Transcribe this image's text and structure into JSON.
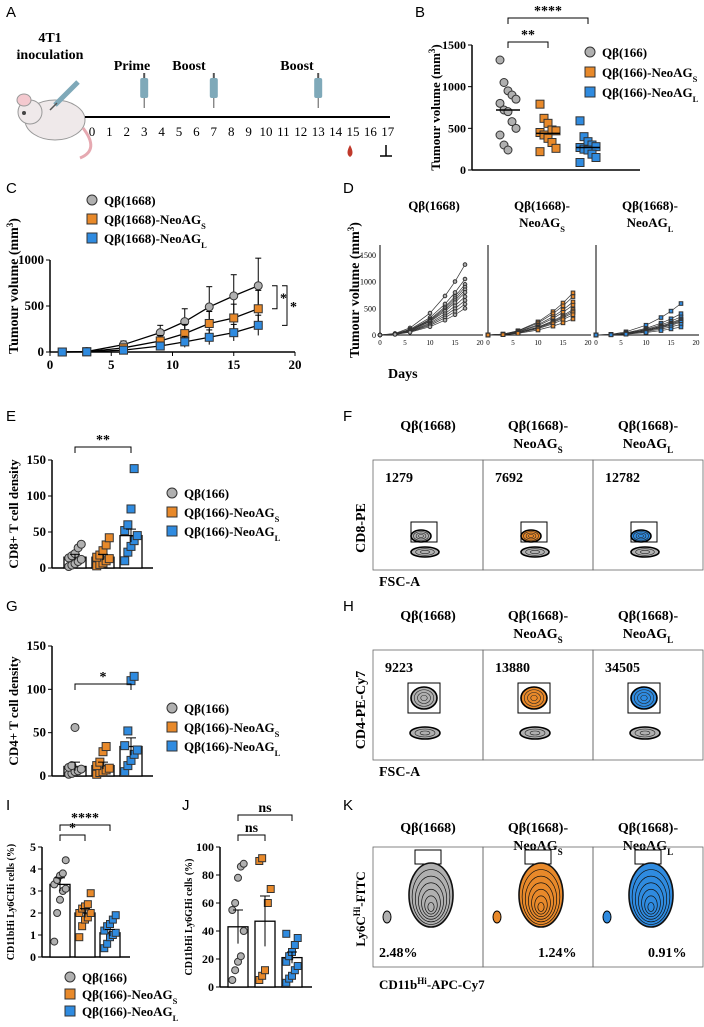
{
  "panels": {
    "A": "A",
    "B": "B",
    "C": "C",
    "D": "D",
    "E": "E",
    "F": "F",
    "G": "G",
    "H": "H",
    "I": "I",
    "J": "J",
    "K": "K"
  },
  "timeline": {
    "inoculation": "4T1\ninoculation",
    "prime": "Prime",
    "boost1": "Boost",
    "boost2": "Boost",
    "days": [
      "0",
      "1",
      "2",
      "3",
      "4",
      "5",
      "6",
      "7",
      "8",
      "9",
      "10",
      "11",
      "12",
      "13",
      "14",
      "15",
      "16",
      "17"
    ],
    "colors": {
      "syringe": "#7fa9b9",
      "blood": "#c0392b"
    }
  },
  "groups166": [
    "Qβ(166)",
    "Qβ(166)-NeoAG",
    "Qβ(166)-NeoAG"
  ],
  "subs": {
    "S": "S",
    "L": "L"
  },
  "groups1668": [
    "Qβ(1668)",
    "Qβ(1668)-NeoAG",
    "Qβ(1668)-NeoAG"
  ],
  "colors": {
    "grey": "#b0b0b0",
    "orange": "#e8892a",
    "blue": "#2f8be0"
  },
  "sig": {
    "B1": "**",
    "B2": "****",
    "C1": "*",
    "C2": "*",
    "E": "**",
    "G": "*",
    "I1": "*",
    "I2": "****",
    "J1": "ns",
    "J2": "ns"
  },
  "flowF": {
    "counts": [
      "1279",
      "7692",
      "12782"
    ],
    "ylabel": "CD8-PE",
    "xlabel": "FSC-A"
  },
  "flowH": {
    "counts": [
      "9223",
      "13880",
      "34505"
    ],
    "ylabel": "CD4-PE-Cy7",
    "xlabel": "FSC-A"
  },
  "flowK": {
    "pcts": [
      "2.48%",
      "1.24%",
      "0.91%"
    ],
    "ylabel": "Ly6C",
    "ylabel_sup": "Hi",
    "ylabel_suffix": "-FITC",
    "xlabel": "CD11b",
    "xlabel_sup": "Hi",
    "xlabel_suffix": "-APC-Cy7"
  },
  "D": {
    "titles": [
      "Qβ(1668)",
      "Qβ(1668)-\nNeoAG"
    ],
    "xlabel": "Days",
    "ylabel": "Tumour volume (mm"
  },
  "chart_data": [
    {
      "id": "B",
      "type": "scatter",
      "ylabel": "Tumour volume (mm3)",
      "ylim": [
        0,
        1500
      ],
      "yticks": [
        0,
        500,
        1000,
        1500
      ],
      "series": [
        {
          "name": "Qβ(166)",
          "values": [
            1320,
            1050,
            950,
            900,
            850,
            800,
            720,
            700,
            580,
            500,
            420,
            300,
            240
          ]
        },
        {
          "name": "Qβ(166)-NeoAGS",
          "values": [
            790,
            620,
            560,
            480,
            470,
            450,
            420,
            380,
            330,
            260,
            220
          ]
        },
        {
          "name": "Qβ(166)-NeoAGL",
          "values": [
            590,
            400,
            340,
            300,
            280,
            270,
            250,
            240,
            190,
            150,
            90
          ]
        }
      ],
      "means": [
        720,
        440,
        270
      ]
    },
    {
      "id": "C",
      "type": "line",
      "xlabel": "Days",
      "ylabel": "Tumour volume (mm3)",
      "xlim": [
        0,
        20
      ],
      "ylim": [
        0,
        1000
      ],
      "xticks": [
        0,
        5,
        10,
        15,
        20
      ],
      "yticks": [
        0,
        500,
        1000
      ],
      "x": [
        1,
        3,
        6,
        9,
        11,
        13,
        15,
        17
      ],
      "series": [
        {
          "name": "Qβ(1668)",
          "values": [
            0,
            5,
            80,
            210,
            330,
            490,
            610,
            720
          ],
          "err": [
            0,
            5,
            40,
            80,
            140,
            220,
            230,
            300
          ]
        },
        {
          "name": "Qβ(1668)-NeoAGS",
          "values": [
            0,
            3,
            45,
            120,
            200,
            310,
            370,
            470
          ],
          "err": [
            0,
            3,
            25,
            60,
            100,
            130,
            150,
            200
          ]
        },
        {
          "name": "Qβ(1668)-NeoAGL",
          "values": [
            0,
            2,
            20,
            65,
            110,
            160,
            210,
            290
          ],
          "err": [
            0,
            2,
            15,
            40,
            60,
            80,
            90,
            110
          ]
        }
      ]
    },
    {
      "id": "E",
      "type": "bar",
      "ylabel": "CD8+ T cell density",
      "ylim": [
        0,
        150
      ],
      "yticks": [
        0,
        50,
        100,
        150
      ],
      "means": [
        15,
        15,
        45
      ],
      "err": [
        4,
        4,
        9
      ],
      "points": [
        [
          2,
          4,
          6,
          9,
          12,
          14,
          17,
          20,
          28,
          33
        ],
        [
          3,
          5,
          7,
          10,
          13,
          15,
          18,
          24,
          32,
          42
        ],
        [
          10,
          22,
          30,
          38,
          45,
          52,
          60,
          82,
          138
        ]
      ]
    },
    {
      "id": "G",
      "type": "bar",
      "ylabel": "CD4+ T cell density",
      "ylim": [
        0,
        150
      ],
      "yticks": [
        0,
        50,
        100,
        150
      ],
      "means": [
        11,
        12,
        34
      ],
      "err": [
        5,
        4,
        10
      ],
      "points": [
        [
          2,
          3,
          5,
          6,
          8,
          10,
          12,
          56
        ],
        [
          2,
          4,
          5,
          7,
          9,
          12,
          16,
          28,
          34
        ],
        [
          5,
          12,
          18,
          25,
          30,
          35,
          52,
          110,
          115
        ]
      ]
    },
    {
      "id": "I",
      "type": "bar",
      "ylabel": "CD11bHi Ly6CHi cells (%)",
      "ylim": [
        0,
        5
      ],
      "yticks": [
        0,
        1,
        2,
        3,
        4,
        5
      ],
      "means": [
        3.3,
        2.0,
        1.1
      ],
      "err": [
        0.3,
        0.2,
        0.15
      ],
      "points": [
        [
          0.7,
          2.0,
          2.6,
          3.0,
          3.1,
          3.3,
          3.5,
          3.7,
          3.8,
          4.4
        ],
        [
          0.9,
          1.4,
          1.7,
          1.8,
          2.0,
          2.0,
          2.2,
          2.3,
          2.4,
          2.9
        ],
        [
          0.4,
          0.6,
          0.9,
          1.0,
          1.1,
          1.2,
          1.4,
          1.5,
          1.7,
          1.9
        ]
      ]
    },
    {
      "id": "J",
      "type": "bar",
      "ylabel": "CD11bHi Ly6GHi cells (%)",
      "ylim": [
        0,
        100
      ],
      "yticks": [
        0,
        20,
        40,
        60,
        80,
        100
      ],
      "means": [
        43,
        47,
        21
      ],
      "err": [
        12,
        18,
        4
      ],
      "points": [
        [
          5,
          12,
          18,
          22,
          40,
          55,
          60,
          78,
          86,
          88
        ],
        [
          5,
          8,
          12,
          60,
          70,
          90,
          92
        ],
        [
          3,
          6,
          8,
          12,
          15,
          18,
          22,
          25,
          30,
          35,
          38
        ]
      ]
    }
  ]
}
